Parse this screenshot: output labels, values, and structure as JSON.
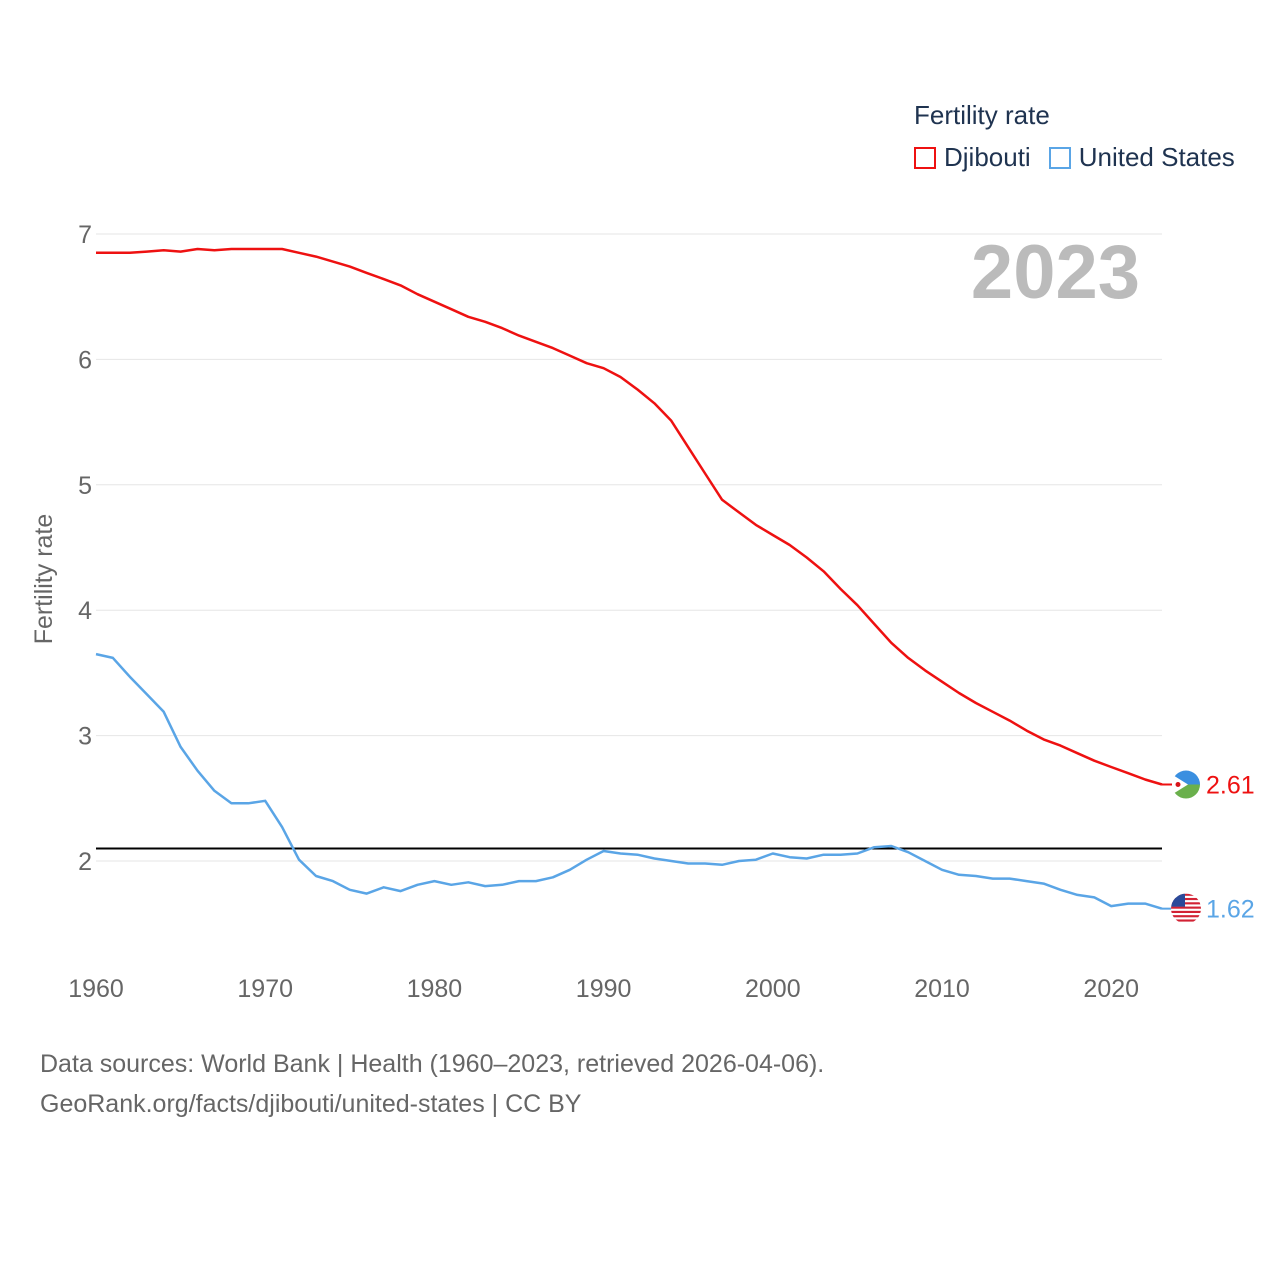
{
  "legend": {
    "title": "Fertility rate",
    "items": [
      {
        "label": "Djibouti",
        "color": "#ee1111"
      },
      {
        "label": "United States",
        "color": "#5aa5e6"
      }
    ]
  },
  "footer": {
    "line1": "Data sources: World Bank | Health (1960–2023, retrieved 2026-04-06).",
    "line2": "GeoRank.org/facts/djibouti/united-states | CC BY"
  },
  "chart_data": {
    "type": "line",
    "title": "Fertility rate",
    "year_label": "2023",
    "xlabel": "",
    "ylabel": "Fertility rate",
    "xlim": [
      1960,
      2023
    ],
    "ylim": [
      1.2,
      7.0
    ],
    "x_ticks": [
      1960,
      1970,
      1980,
      1990,
      2000,
      2010,
      2020
    ],
    "y_ticks": [
      2,
      3,
      4,
      5,
      6,
      7
    ],
    "reference_line": {
      "y": 2.1,
      "color": "#000000"
    },
    "legend_position": "top-right",
    "x": [
      1960,
      1961,
      1962,
      1963,
      1964,
      1965,
      1966,
      1967,
      1968,
      1969,
      1970,
      1971,
      1972,
      1973,
      1974,
      1975,
      1976,
      1977,
      1978,
      1979,
      1980,
      1981,
      1982,
      1983,
      1984,
      1985,
      1986,
      1987,
      1988,
      1989,
      1990,
      1991,
      1992,
      1993,
      1994,
      1995,
      1996,
      1997,
      1998,
      1999,
      2000,
      2001,
      2002,
      2003,
      2004,
      2005,
      2006,
      2007,
      2008,
      2009,
      2010,
      2011,
      2012,
      2013,
      2014,
      2015,
      2016,
      2017,
      2018,
      2019,
      2020,
      2021,
      2022,
      2023
    ],
    "series": [
      {
        "name": "Djibouti",
        "color": "#ee1111",
        "end_label": "2.61",
        "values": [
          6.85,
          6.85,
          6.85,
          6.86,
          6.87,
          6.86,
          6.88,
          6.87,
          6.88,
          6.88,
          6.88,
          6.88,
          6.85,
          6.82,
          6.78,
          6.74,
          6.69,
          6.64,
          6.59,
          6.52,
          6.46,
          6.4,
          6.34,
          6.3,
          6.25,
          6.19,
          6.14,
          6.09,
          6.03,
          5.97,
          5.93,
          5.86,
          5.76,
          5.65,
          5.51,
          5.3,
          5.09,
          4.88,
          4.78,
          4.68,
          4.6,
          4.52,
          4.42,
          4.31,
          4.17,
          4.04,
          3.89,
          3.74,
          3.62,
          3.52,
          3.43,
          3.34,
          3.26,
          3.19,
          3.12,
          3.04,
          2.97,
          2.92,
          2.86,
          2.8,
          2.75,
          2.7,
          2.65,
          2.61
        ]
      },
      {
        "name": "United States",
        "color": "#5aa5e6",
        "end_label": "1.62",
        "values": [
          3.65,
          3.62,
          3.47,
          3.33,
          3.19,
          2.91,
          2.72,
          2.56,
          2.46,
          2.46,
          2.48,
          2.27,
          2.01,
          1.88,
          1.84,
          1.77,
          1.74,
          1.79,
          1.76,
          1.81,
          1.84,
          1.81,
          1.83,
          1.8,
          1.81,
          1.84,
          1.84,
          1.87,
          1.93,
          2.01,
          2.08,
          2.06,
          2.05,
          2.02,
          2.0,
          1.98,
          1.98,
          1.97,
          2.0,
          2.01,
          2.06,
          2.03,
          2.02,
          2.05,
          2.05,
          2.06,
          2.11,
          2.12,
          2.07,
          2.0,
          1.93,
          1.89,
          1.88,
          1.86,
          1.86,
          1.84,
          1.82,
          1.77,
          1.73,
          1.71,
          1.64,
          1.66,
          1.66,
          1.62
        ]
      }
    ]
  }
}
